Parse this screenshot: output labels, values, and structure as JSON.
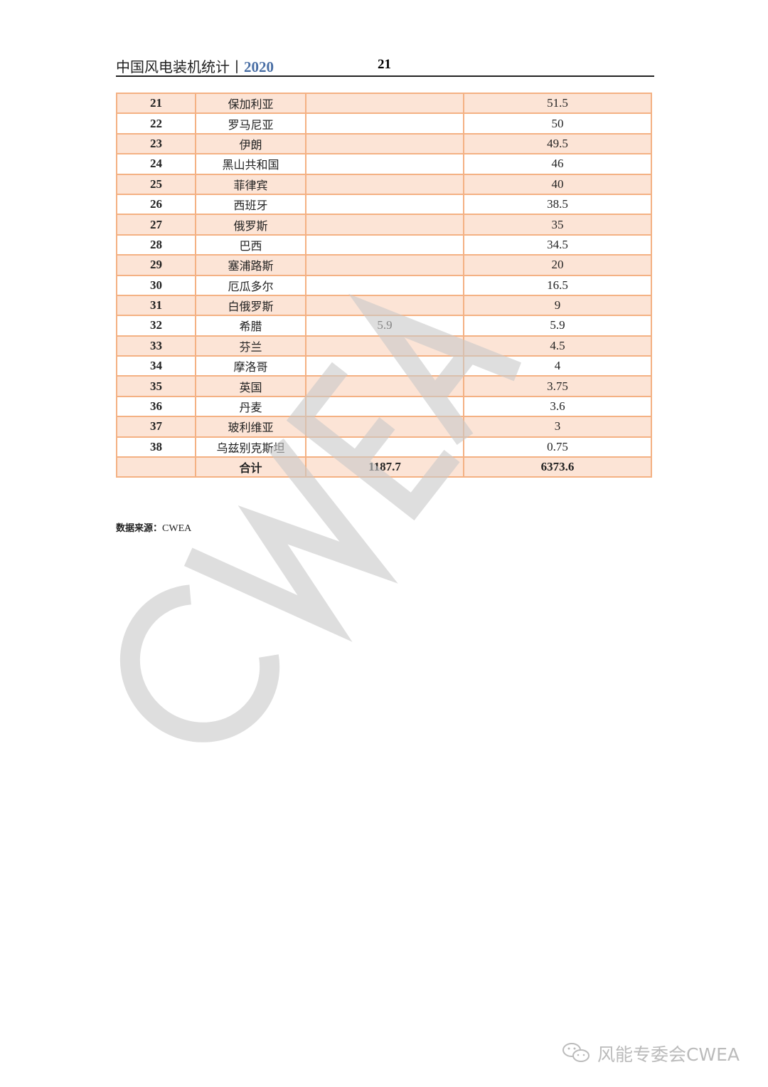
{
  "header": {
    "title": "中国风电装机统计丨",
    "year": "2020",
    "page": "21"
  },
  "table": {
    "rows": [
      {
        "no": "21",
        "country": "保加利亚",
        "col3": "",
        "col4": "51.5"
      },
      {
        "no": "22",
        "country": "罗马尼亚",
        "col3": "",
        "col4": "50"
      },
      {
        "no": "23",
        "country": "伊朗",
        "col3": "",
        "col4": "49.5"
      },
      {
        "no": "24",
        "country": "黑山共和国",
        "col3": "",
        "col4": "46"
      },
      {
        "no": "25",
        "country": "菲律宾",
        "col3": "",
        "col4": "40"
      },
      {
        "no": "26",
        "country": "西班牙",
        "col3": "",
        "col4": "38.5"
      },
      {
        "no": "27",
        "country": "俄罗斯",
        "col3": "",
        "col4": "35"
      },
      {
        "no": "28",
        "country": "巴西",
        "col3": "",
        "col4": "34.5"
      },
      {
        "no": "29",
        "country": "塞浦路斯",
        "col3": "",
        "col4": "20"
      },
      {
        "no": "30",
        "country": "厄瓜多尔",
        "col3": "",
        "col4": "16.5"
      },
      {
        "no": "31",
        "country": "白俄罗斯",
        "col3": "",
        "col4": "9"
      },
      {
        "no": "32",
        "country": "希腊",
        "col3": "5.9",
        "col4": "5.9"
      },
      {
        "no": "33",
        "country": "芬兰",
        "col3": "",
        "col4": "4.5"
      },
      {
        "no": "34",
        "country": "摩洛哥",
        "col3": "",
        "col4": "4"
      },
      {
        "no": "35",
        "country": "英国",
        "col3": "",
        "col4": "3.75"
      },
      {
        "no": "36",
        "country": "丹麦",
        "col3": "",
        "col4": "3.6"
      },
      {
        "no": "37",
        "country": "玻利维亚",
        "col3": "",
        "col4": "3"
      },
      {
        "no": "38",
        "country": "乌兹别克斯坦",
        "col3": "",
        "col4": "0.75"
      }
    ],
    "total": {
      "label": "合计",
      "col3": "1187.7",
      "col4": "6373.6"
    }
  },
  "source": {
    "label": "数据来源：",
    "value": "CWEA"
  },
  "watermark": "CWEA",
  "footer": {
    "icon": "wechat-icon",
    "text": "风能专委会CWEA"
  },
  "colors": {
    "border": "#f4b183",
    "shade": "#fce4d6",
    "year": "#4a6fa5"
  }
}
